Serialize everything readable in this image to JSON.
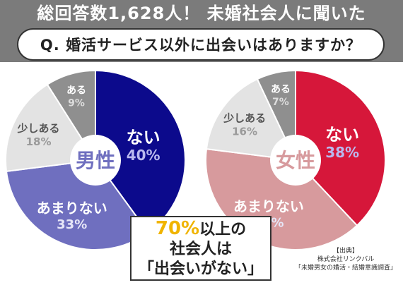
{
  "headline": "総回答数1,628人！ 未婚社会人に聞いた",
  "question": "Q. 婚活サービス以外に出会いはありますか？",
  "callout": {
    "percent": "70%",
    "line1_rest": "以上の",
    "line2": "社会人は",
    "line3": "「出会いがない」"
  },
  "source": {
    "label": "【出典】",
    "company": "株式会社リンクバル",
    "survey": "「未婚男女の婚活・結婚意識調査」"
  },
  "chart_data": [
    {
      "type": "pie",
      "center_label": "男性",
      "categories": [
        "ない",
        "あまりない",
        "少しある",
        "ある"
      ],
      "values": [
        40,
        33,
        18,
        9
      ],
      "value_labels": [
        "40%",
        "33%",
        "18%",
        "9%"
      ],
      "colors": [
        "#0c0a8c",
        "#6f6fbf",
        "#e3e3e3",
        "#8f8f8f"
      ]
    },
    {
      "type": "pie",
      "center_label": "女性",
      "categories": [
        "ない",
        "あまりない",
        "少しある",
        "ある"
      ],
      "values": [
        38,
        39,
        16,
        7
      ],
      "value_labels": [
        "38%",
        "39%",
        "16%",
        "7%"
      ],
      "colors": [
        "#d6173a",
        "#d79a9d",
        "#e3e3e3",
        "#8f8f8f"
      ]
    }
  ]
}
